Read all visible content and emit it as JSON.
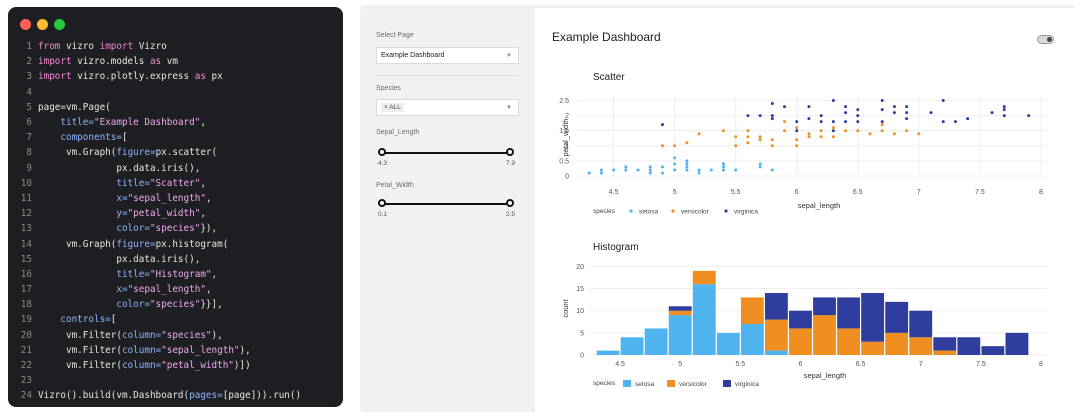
{
  "code": {
    "lines": [
      {
        "n": "1",
        "parts": [
          [
            "k",
            "from "
          ],
          [
            "d",
            "vizro "
          ],
          [
            "k",
            "import "
          ],
          [
            "d",
            "Vizro"
          ]
        ]
      },
      {
        "n": "2",
        "parts": [
          [
            "k",
            "import "
          ],
          [
            "d",
            "vizro.models "
          ],
          [
            "k",
            "as "
          ],
          [
            "d",
            "vm"
          ]
        ]
      },
      {
        "n": "3",
        "parts": [
          [
            "k",
            "import "
          ],
          [
            "d",
            "vizro.plotly.express "
          ],
          [
            "k",
            "as "
          ],
          [
            "d",
            "px"
          ]
        ]
      },
      {
        "n": "4",
        "parts": []
      },
      {
        "n": "5",
        "parts": [
          [
            "d",
            "page=vm.Page("
          ]
        ]
      },
      {
        "n": "6",
        "parts": [
          [
            "p",
            "    title="
          ],
          [
            "s",
            "\"Example Dashboard\""
          ],
          [
            "d",
            ","
          ]
        ]
      },
      {
        "n": "7",
        "parts": [
          [
            "p",
            "    components="
          ],
          [
            "d",
            "["
          ]
        ]
      },
      {
        "n": "8",
        "parts": [
          [
            "d",
            "     vm.Graph("
          ],
          [
            "p",
            "figure="
          ],
          [
            "d",
            "px.scatter("
          ]
        ]
      },
      {
        "n": "9",
        "parts": [
          [
            "d",
            "              px.data.iris(),"
          ]
        ]
      },
      {
        "n": "10",
        "parts": [
          [
            "p",
            "              title="
          ],
          [
            "s",
            "\"Scatter\""
          ],
          [
            "d",
            ","
          ]
        ]
      },
      {
        "n": "11",
        "parts": [
          [
            "p",
            "              x="
          ],
          [
            "s",
            "\"sepal_length\""
          ],
          [
            "d",
            ","
          ]
        ]
      },
      {
        "n": "12",
        "parts": [
          [
            "p",
            "              y="
          ],
          [
            "s",
            "\"petal_width\""
          ],
          [
            "d",
            ","
          ]
        ]
      },
      {
        "n": "13",
        "parts": [
          [
            "p",
            "              color="
          ],
          [
            "s",
            "\"species\""
          ],
          [
            "d",
            "}),"
          ]
        ]
      },
      {
        "n": "14",
        "parts": [
          [
            "d",
            "     vm.Graph("
          ],
          [
            "p",
            "figure="
          ],
          [
            "d",
            "px.histogram("
          ]
        ]
      },
      {
        "n": "15",
        "parts": [
          [
            "d",
            "              px.data.iris(),"
          ]
        ]
      },
      {
        "n": "16",
        "parts": [
          [
            "p",
            "              title="
          ],
          [
            "s",
            "\"Histogram\""
          ],
          [
            "d",
            ","
          ]
        ]
      },
      {
        "n": "17",
        "parts": [
          [
            "p",
            "              x="
          ],
          [
            "s",
            "\"sepal_length\""
          ],
          [
            "d",
            ","
          ]
        ]
      },
      {
        "n": "18",
        "parts": [
          [
            "p",
            "              color="
          ],
          [
            "s",
            "\"species\""
          ],
          [
            "d",
            "}}],"
          ]
        ]
      },
      {
        "n": "19",
        "parts": [
          [
            "p",
            "    controls="
          ],
          [
            "d",
            "["
          ]
        ]
      },
      {
        "n": "20",
        "parts": [
          [
            "d",
            "     vm.Filter("
          ],
          [
            "p",
            "column="
          ],
          [
            "s",
            "\"species\""
          ],
          [
            "d",
            "),"
          ]
        ]
      },
      {
        "n": "21",
        "parts": [
          [
            "d",
            "     vm.Filter("
          ],
          [
            "p",
            "column="
          ],
          [
            "s",
            "\"sepal_length\""
          ],
          [
            "d",
            "),"
          ]
        ]
      },
      {
        "n": "22",
        "parts": [
          [
            "d",
            "     vm.Filter("
          ],
          [
            "p",
            "column="
          ],
          [
            "s",
            "\"petal_width\""
          ],
          [
            "d",
            ")])"
          ]
        ]
      },
      {
        "n": "23",
        "parts": []
      },
      {
        "n": "24",
        "parts": [
          [
            "d",
            "Vizro().build(vm.Dashboard("
          ],
          [
            "p",
            "pages="
          ],
          [
            "d",
            "[page])).run()"
          ]
        ]
      }
    ]
  },
  "sidebar": {
    "select_page_label": "Select Page",
    "select_page_value": "Example Dashboard",
    "species_label": "Species",
    "species_chip": "× ALL",
    "sepal_label": "Sepal_Length",
    "sepal_min": "4.3",
    "sepal_max": "7.9",
    "petal_label": "Petal_Width",
    "petal_min": "0.1",
    "petal_max": "2.5"
  },
  "dashboard": {
    "title": "Example Dashboard"
  },
  "colors": {
    "setosa": "#4fb3f0",
    "versicolor": "#ef8f22",
    "virginica": "#2f3e9e",
    "code_bg": "#1e1f22"
  },
  "chart_data": [
    {
      "type": "scatter",
      "title": "Scatter",
      "xlabel": "sepal_length",
      "ylabel": "petal_width",
      "xlim": [
        4.2,
        8.05
      ],
      "ylim": [
        -0.1,
        2.65
      ],
      "xticks": [
        "4.5",
        "5",
        "5.5",
        "6",
        "6.5",
        "7",
        "7.5",
        "8"
      ],
      "yticks": [
        "0",
        "0.5",
        "1",
        "1.5",
        "2",
        "2.5"
      ],
      "legend_title": "species",
      "series": [
        {
          "name": "setosa",
          "points": [
            [
              4.4,
              0.1
            ],
            [
              4.5,
              0.2
            ],
            [
              4.6,
              0.2
            ],
            [
              4.7,
              0.2
            ],
            [
              4.8,
              0.1
            ],
            [
              4.8,
              0.2
            ],
            [
              4.9,
              0.1
            ],
            [
              4.9,
              0.3
            ],
            [
              5.0,
              0.2
            ],
            [
              5.0,
              0.4
            ],
            [
              5.0,
              0.6
            ],
            [
              5.1,
              0.2
            ],
            [
              5.1,
              0.3
            ],
            [
              5.1,
              0.4
            ],
            [
              5.1,
              0.5
            ],
            [
              5.2,
              0.1
            ],
            [
              5.2,
              0.2
            ],
            [
              5.3,
              0.2
            ],
            [
              5.4,
              0.2
            ],
            [
              5.4,
              0.4
            ],
            [
              5.5,
              0.2
            ],
            [
              5.7,
              0.3
            ],
            [
              5.7,
              0.4
            ],
            [
              5.8,
              0.2
            ],
            [
              4.3,
              0.1
            ],
            [
              4.6,
              0.3
            ],
            [
              4.8,
              0.3
            ],
            [
              4.4,
              0.2
            ],
            [
              5.4,
              0.3
            ]
          ]
        },
        {
          "name": "versicolor",
          "points": [
            [
              4.9,
              1.0
            ],
            [
              5.0,
              1.0
            ],
            [
              5.1,
              1.1
            ],
            [
              5.2,
              1.4
            ],
            [
              5.5,
              1.3
            ],
            [
              5.6,
              1.3
            ],
            [
              5.7,
              1.3
            ],
            [
              5.8,
              1.0
            ],
            [
              5.9,
              1.5
            ],
            [
              6.0,
              1.0
            ],
            [
              6.1,
              1.4
            ],
            [
              6.2,
              1.5
            ],
            [
              6.3,
              1.3
            ],
            [
              6.4,
              1.5
            ],
            [
              6.5,
              1.5
            ],
            [
              6.6,
              1.4
            ],
            [
              6.7,
              1.5
            ],
            [
              6.8,
              1.4
            ],
            [
              6.9,
              1.5
            ],
            [
              7.0,
              1.4
            ],
            [
              5.5,
              1.0
            ],
            [
              5.6,
              1.1
            ],
            [
              5.7,
              1.2
            ],
            [
              5.8,
              1.2
            ],
            [
              6.0,
              1.6
            ],
            [
              6.1,
              1.3
            ],
            [
              6.2,
              1.3
            ],
            [
              6.3,
              1.6
            ],
            [
              6.7,
              1.7
            ],
            [
              5.4,
              1.5
            ],
            [
              5.6,
              1.5
            ],
            [
              5.9,
              1.8
            ],
            [
              6.0,
              1.2
            ]
          ]
        },
        {
          "name": "virginica",
          "points": [
            [
              4.9,
              1.7
            ],
            [
              5.6,
              2.0
            ],
            [
              5.7,
              2.0
            ],
            [
              5.8,
              1.9
            ],
            [
              5.8,
              2.4
            ],
            [
              6.0,
              1.8
            ],
            [
              6.1,
              1.9
            ],
            [
              6.2,
              1.8
            ],
            [
              6.3,
              1.8
            ],
            [
              6.3,
              2.5
            ],
            [
              6.4,
              1.8
            ],
            [
              6.4,
              2.3
            ],
            [
              6.5,
              2.0
            ],
            [
              6.7,
              1.8
            ],
            [
              6.7,
              2.5
            ],
            [
              6.8,
              2.1
            ],
            [
              6.9,
              2.3
            ],
            [
              7.1,
              2.1
            ],
            [
              7.2,
              1.8
            ],
            [
              7.2,
              2.5
            ],
            [
              7.3,
              1.8
            ],
            [
              7.4,
              1.9
            ],
            [
              7.6,
              2.1
            ],
            [
              7.7,
              2.3
            ],
            [
              7.9,
              2.0
            ],
            [
              5.9,
              2.3
            ],
            [
              6.0,
              1.5
            ],
            [
              6.1,
              2.3
            ],
            [
              6.2,
              2.0
            ],
            [
              6.3,
              1.5
            ],
            [
              6.4,
              2.1
            ],
            [
              6.5,
              1.8
            ],
            [
              6.7,
              2.2
            ],
            [
              6.8,
              2.3
            ],
            [
              6.9,
              2.1
            ],
            [
              7.7,
              2.0
            ],
            [
              7.7,
              2.2
            ],
            [
              6.9,
              1.9
            ],
            [
              5.8,
              2.0
            ],
            [
              6.5,
              2.2
            ]
          ]
        }
      ]
    },
    {
      "type": "bar",
      "stacked": true,
      "title": "Histogram",
      "xlabel": "sepal_length",
      "ylabel": "count",
      "xlim": [
        4.25,
        8.05
      ],
      "ylim": [
        0,
        21
      ],
      "xticks": [
        "4.5",
        "5",
        "5.5",
        "6",
        "6.5",
        "7",
        "7.5",
        "8"
      ],
      "yticks": [
        "0",
        "5",
        "10",
        "15",
        "20"
      ],
      "legend_title": "species",
      "bin_width": 0.2,
      "bin_starts": [
        4.3,
        4.5,
        4.7,
        4.9,
        5.1,
        5.3,
        5.5,
        5.7,
        5.9,
        6.1,
        6.3,
        6.5,
        6.7,
        6.9,
        7.1,
        7.3,
        7.5,
        7.7
      ],
      "series": [
        {
          "name": "setosa",
          "values": [
            1,
            4,
            6,
            9,
            16,
            5,
            7,
            1,
            0,
            0,
            0,
            0,
            0,
            0,
            0,
            0,
            0,
            0
          ]
        },
        {
          "name": "versicolor",
          "values": [
            0,
            0,
            0,
            1,
            3,
            0,
            6,
            7,
            6,
            9,
            6,
            3,
            5,
            4,
            1,
            0,
            0,
            0
          ]
        },
        {
          "name": "virginica",
          "values": [
            0,
            0,
            0,
            1,
            0,
            0,
            0,
            6,
            4,
            4,
            7,
            11,
            7,
            6,
            3,
            4,
            2,
            5
          ]
        }
      ]
    }
  ]
}
